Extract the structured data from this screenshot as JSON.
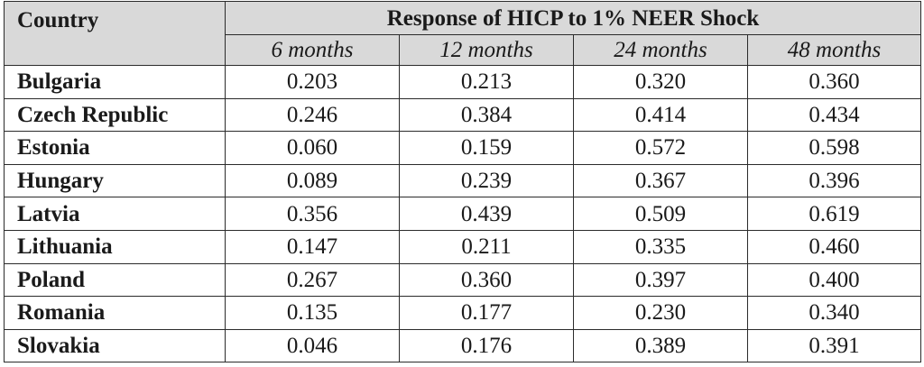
{
  "table": {
    "country_header": "Country",
    "group_header": "Response of HICP to 1% NEER Shock",
    "horizons": [
      "6 months",
      "12 months",
      "24 months",
      "48 months"
    ],
    "rows": [
      {
        "country": "Bulgaria",
        "values": [
          "0.203",
          "0.213",
          "0.320",
          "0.360"
        ]
      },
      {
        "country": "Czech Republic",
        "values": [
          "0.246",
          "0.384",
          "0.414",
          "0.434"
        ]
      },
      {
        "country": "Estonia",
        "values": [
          "0.060",
          "0.159",
          "0.572",
          "0.598"
        ]
      },
      {
        "country": "Hungary",
        "values": [
          "0.089",
          "0.239",
          "0.367",
          "0.396"
        ]
      },
      {
        "country": "Latvia",
        "values": [
          "0.356",
          "0.439",
          "0.509",
          "0.619"
        ]
      },
      {
        "country": "Lithuania",
        "values": [
          "0.147",
          "0.211",
          "0.335",
          "0.460"
        ]
      },
      {
        "country": "Poland",
        "values": [
          "0.267",
          "0.360",
          "0.397",
          "0.400"
        ]
      },
      {
        "country": "Romania",
        "values": [
          "0.135",
          "0.177",
          "0.230",
          "0.340"
        ]
      },
      {
        "country": "Slovakia",
        "values": [
          "0.046",
          "0.176",
          "0.389",
          "0.391"
        ]
      }
    ],
    "colors": {
      "header_background": "#d9d9d9",
      "border": "#2b2b2b",
      "text": "#1a1a1a"
    }
  }
}
